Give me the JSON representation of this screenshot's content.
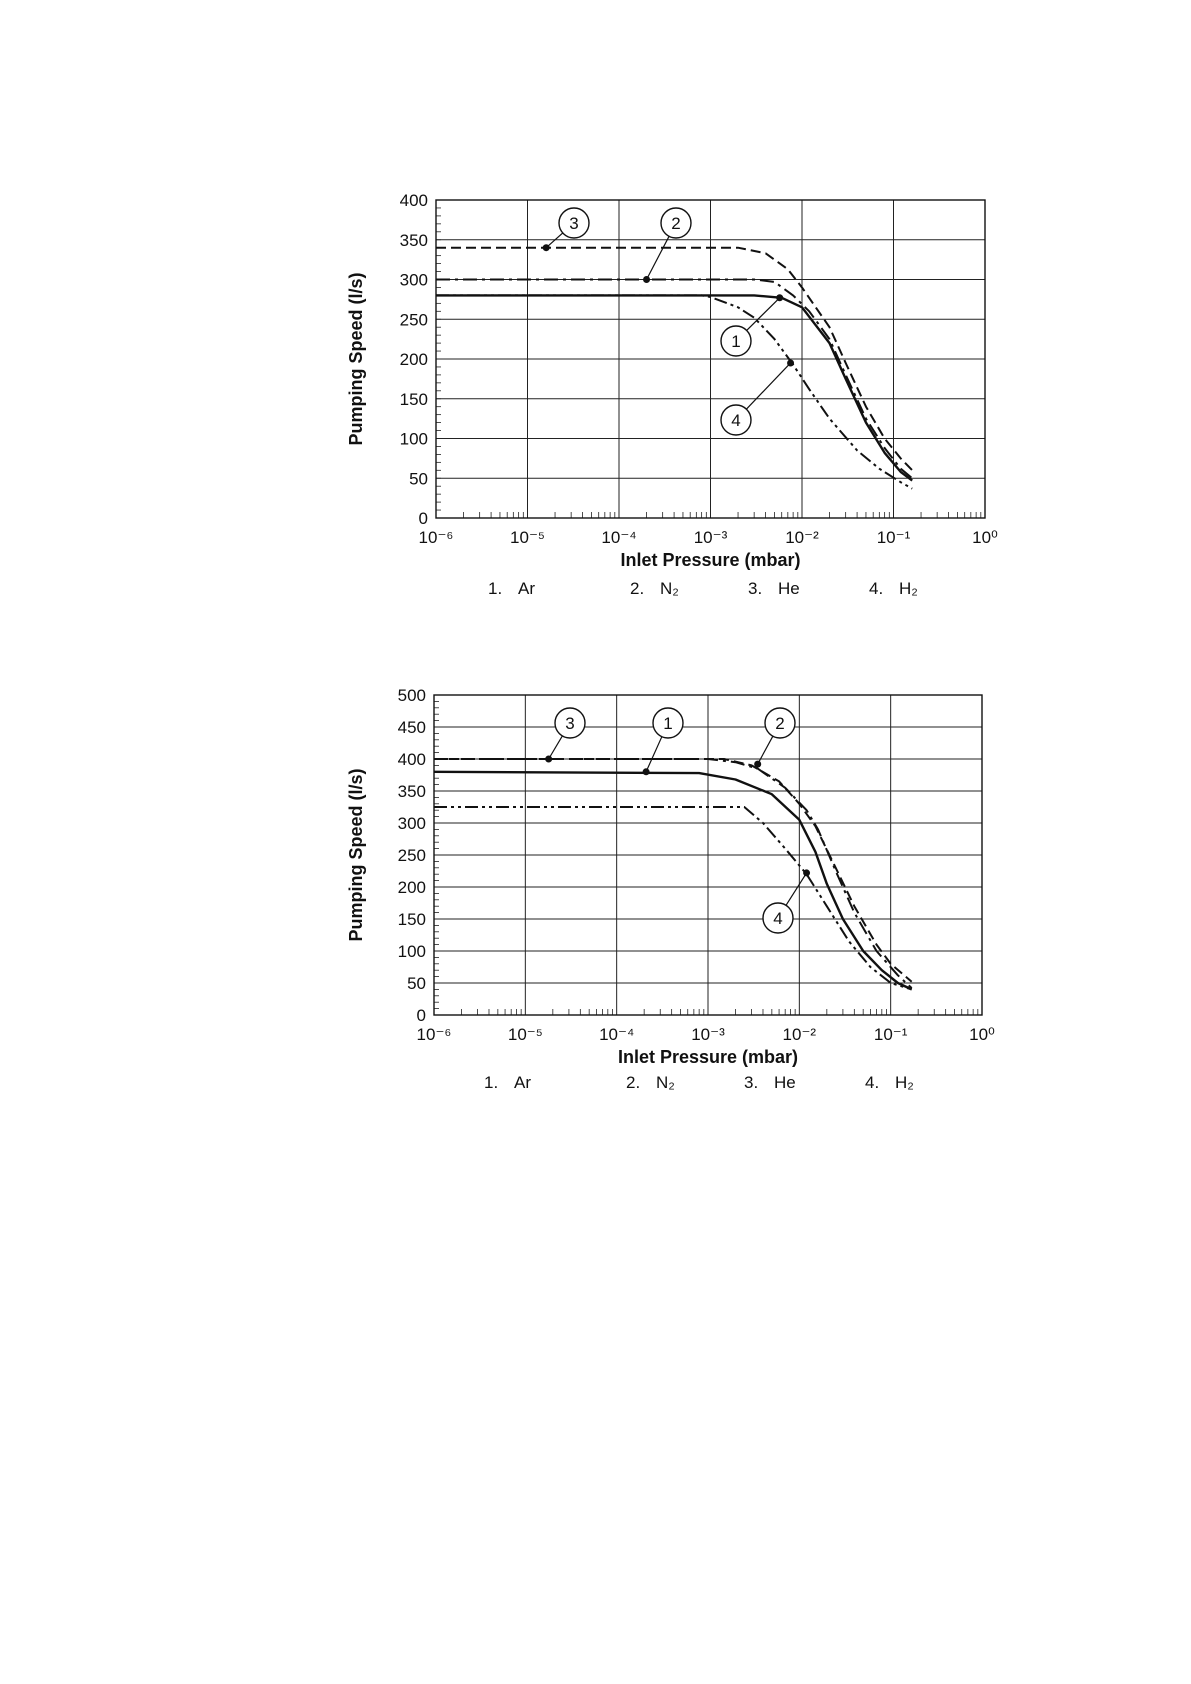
{
  "chart_data": [
    {
      "type": "line",
      "xlabel": "Inlet Pressure (mbar)",
      "ylabel": "Pumping Speed (l/s)",
      "xscale": "log",
      "xlim": [
        1e-06,
        1
      ],
      "ylim": [
        0,
        400
      ],
      "x_ticks": [
        "10⁻⁶",
        "10⁻⁵",
        "10⁻⁴",
        "10⁻³",
        "10⁻²",
        "10⁻¹",
        "10⁰"
      ],
      "y_ticks": [
        "0",
        "50",
        "100",
        "150",
        "200",
        "250",
        "300",
        "350",
        "400"
      ],
      "y_tick_values": [
        0,
        50,
        100,
        150,
        200,
        250,
        300,
        350,
        400
      ],
      "grid": true,
      "legend": [
        {
          "number": "1.",
          "name": "Ar"
        },
        {
          "number": "2.",
          "name": "N₂"
        },
        {
          "number": "3.",
          "name": "He"
        },
        {
          "number": "4.",
          "name": "H₂"
        }
      ],
      "series": [
        {
          "id": "1",
          "style": "solid",
          "x": [
            1e-06,
            0.003,
            0.006,
            0.01,
            0.02,
            0.03,
            0.05,
            0.08,
            0.12,
            0.16
          ],
          "y": [
            280,
            280,
            277,
            265,
            220,
            175,
            120,
            82,
            58,
            47
          ],
          "marker": {
            "x": 0.0057,
            "y": 277
          }
        },
        {
          "id": "2",
          "style": "dash-dot",
          "x": [
            1e-06,
            0.003,
            0.005,
            0.008,
            0.012,
            0.02,
            0.03,
            0.05,
            0.08,
            0.12,
            0.16
          ],
          "y": [
            300,
            300,
            297,
            280,
            260,
            225,
            180,
            125,
            88,
            62,
            50
          ],
          "marker": {
            "x": 0.0002,
            "y": 300
          }
        },
        {
          "id": "3",
          "style": "dashed",
          "x": [
            1e-06,
            0.002,
            0.004,
            0.007,
            0.01,
            0.02,
            0.03,
            0.05,
            0.08,
            0.12,
            0.17
          ],
          "y": [
            340,
            340,
            333,
            313,
            290,
            240,
            195,
            140,
            100,
            75,
            57
          ],
          "marker": {
            "x": 1.6e-05,
            "y": 340
          }
        },
        {
          "id": "4",
          "style": "dash-dot-dot",
          "x": [
            1e-06,
            0.0008,
            0.001,
            0.002,
            0.003,
            0.005,
            0.008,
            0.012,
            0.02,
            0.04,
            0.07,
            0.12,
            0.16
          ],
          "y": [
            280,
            280,
            278,
            265,
            252,
            225,
            193,
            162,
            125,
            85,
            62,
            45,
            37
          ],
          "marker": {
            "x": 0.0075,
            "y": 195
          }
        }
      ],
      "callouts": [
        {
          "label": "3",
          "series": "3"
        },
        {
          "label": "2",
          "series": "2"
        },
        {
          "label": "1",
          "series": "1"
        },
        {
          "label": "4",
          "series": "4"
        }
      ]
    },
    {
      "type": "line",
      "xlabel": "Inlet Pressure (mbar)",
      "ylabel": "Pumping Speed (l/s)",
      "xscale": "log",
      "xlim": [
        1e-06,
        1
      ],
      "ylim": [
        0,
        500
      ],
      "x_ticks": [
        "10⁻⁶",
        "10⁻⁵",
        "10⁻⁴",
        "10⁻³",
        "10⁻²",
        "10⁻¹",
        "10⁰"
      ],
      "y_ticks": [
        "0",
        "50",
        "100",
        "150",
        "200",
        "250",
        "300",
        "350",
        "400",
        "450",
        "500"
      ],
      "y_tick_values": [
        0,
        50,
        100,
        150,
        200,
        250,
        300,
        350,
        400,
        450,
        500
      ],
      "grid": true,
      "legend": [
        {
          "number": "1.",
          "name": "Ar"
        },
        {
          "number": "2.",
          "name": "N₂"
        },
        {
          "number": "3.",
          "name": "He"
        },
        {
          "number": "4.",
          "name": "H₂"
        }
      ],
      "series": [
        {
          "id": "1",
          "style": "solid",
          "x": [
            1e-06,
            0.0008,
            0.002,
            0.005,
            0.01,
            0.015,
            0.02,
            0.03,
            0.05,
            0.08,
            0.12,
            0.17
          ],
          "y": [
            380,
            378,
            368,
            345,
            305,
            255,
            205,
            150,
            100,
            70,
            50,
            40
          ],
          "marker": {
            "x": 0.00021,
            "y": 380
          }
        },
        {
          "id": "2",
          "style": "dash-dot",
          "x": [
            1e-06,
            0.001,
            0.002,
            0.0035,
            0.007,
            0.012,
            0.016,
            0.025,
            0.04,
            0.07,
            0.12,
            0.17
          ],
          "y": [
            400,
            400,
            395,
            385,
            355,
            320,
            290,
            225,
            160,
            100,
            62,
            42
          ],
          "marker": {
            "x": 0.0035,
            "y": 392
          }
        },
        {
          "id": "3",
          "style": "dashed",
          "x": [
            1e-06,
            0.0015,
            0.003,
            0.006,
            0.01,
            0.015,
            0.025,
            0.04,
            0.07,
            0.1,
            0.17
          ],
          "y": [
            400,
            400,
            390,
            365,
            330,
            295,
            230,
            170,
            110,
            80,
            52
          ],
          "marker": {
            "x": 1.8e-05,
            "y": 400
          }
        },
        {
          "id": "4",
          "style": "dash-dot-dot",
          "x": [
            1e-06,
            0.0025,
            0.004,
            0.007,
            0.012,
            0.02,
            0.035,
            0.06,
            0.1,
            0.17
          ],
          "y": [
            325,
            325,
            300,
            260,
            220,
            170,
            115,
            75,
            50,
            40
          ],
          "marker": {
            "x": 0.012,
            "y": 222
          }
        }
      ],
      "callouts": [
        {
          "label": "3",
          "series": "3"
        },
        {
          "label": "1",
          "series": "1"
        },
        {
          "label": "2",
          "series": "2"
        },
        {
          "label": "4",
          "series": "4"
        }
      ]
    }
  ]
}
